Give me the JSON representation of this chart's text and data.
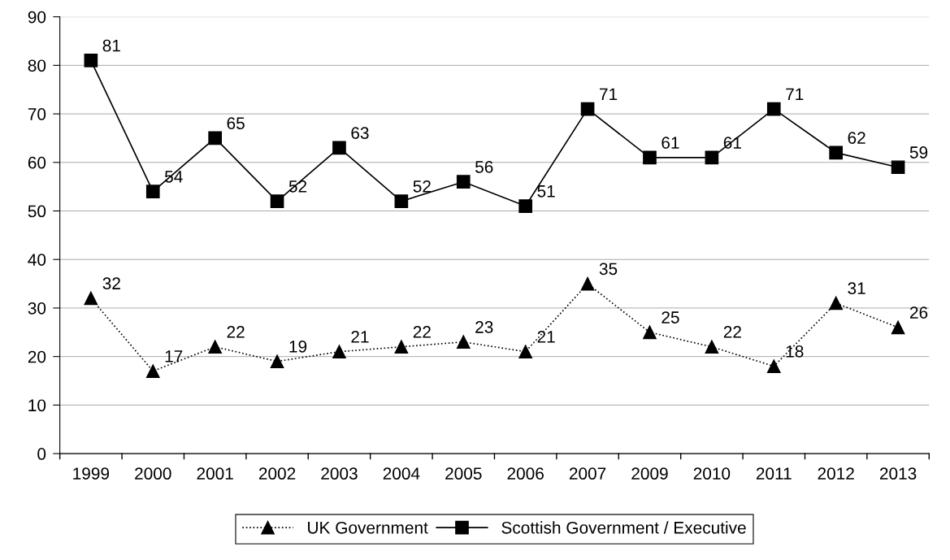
{
  "chart_data": {
    "type": "line",
    "categories": [
      "1999",
      "2000",
      "2001",
      "2002",
      "2003",
      "2004",
      "2005",
      "2006",
      "2007",
      "2009",
      "2010",
      "2011",
      "2012",
      "2013"
    ],
    "series": [
      {
        "name": "UK Government",
        "color": "#000000",
        "marker": "triangle",
        "line_style": "dotted",
        "values": [
          32,
          17,
          22,
          19,
          21,
          22,
          23,
          21,
          35,
          25,
          22,
          18,
          31,
          26
        ]
      },
      {
        "name": "Scottish Government / Executive",
        "color": "#000000",
        "marker": "square",
        "line_style": "solid",
        "values": [
          81,
          54,
          65,
          52,
          63,
          52,
          56,
          51,
          71,
          61,
          61,
          71,
          62,
          59
        ]
      }
    ],
    "ylim": [
      0,
      90
    ],
    "yticks": [
      0,
      10,
      20,
      30,
      40,
      50,
      60,
      70,
      80,
      90
    ],
    "grid": "y",
    "legend": "bottom",
    "data_labels": true
  }
}
